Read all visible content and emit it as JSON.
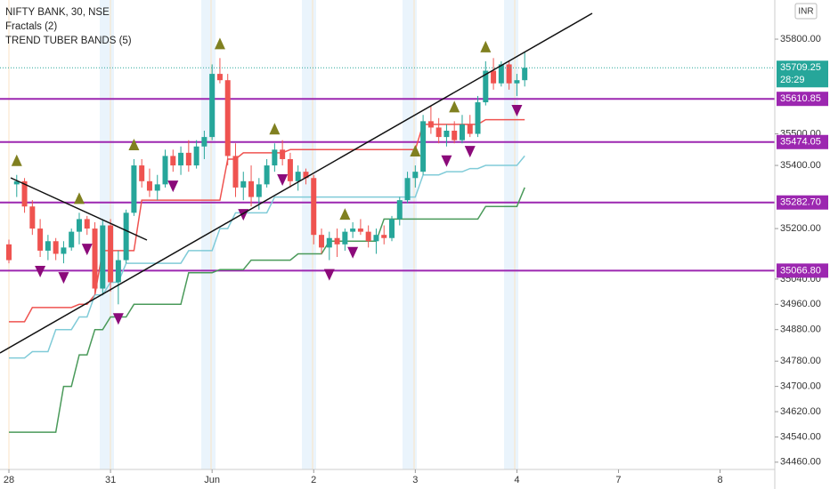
{
  "chart_data": {
    "type": "candlestick",
    "title": "NIFTY BANK, 30, NSE",
    "legend": [
      "Fractals (2)",
      "TREND TUBER BANDS (5)"
    ],
    "currency": "INR",
    "up_color": "#26a69a",
    "down_color": "#ef5350",
    "open": [
      35150,
      35340,
      35350,
      35270,
      35200,
      35130,
      35160,
      35120,
      35140,
      35190,
      35230,
      35200,
      35010,
      35210,
      35030,
      35100,
      35250,
      35400,
      35350,
      35320,
      35340,
      35430,
      35400,
      35440,
      35400,
      35460,
      35490,
      35690,
      35670,
      35430,
      35330,
      35350,
      35300,
      35340,
      35400,
      35450,
      35420,
      35350,
      35380,
      35360,
      35180,
      35140,
      35170,
      35150,
      35190,
      35200,
      35190,
      35160,
      35180,
      35170,
      35230,
      35290,
      35360,
      35380,
      35540,
      35520,
      35490,
      35510,
      35480,
      35530,
      35500,
      35600,
      35700,
      35660,
      35720,
      35660,
      35670
    ],
    "high": [
      35165,
      35370,
      35360,
      35290,
      35230,
      35180,
      35170,
      35160,
      35200,
      35250,
      35240,
      35220,
      35230,
      35230,
      35130,
      35260,
      35420,
      35420,
      35390,
      35370,
      35450,
      35450,
      35460,
      35480,
      35480,
      35510,
      35720,
      35740,
      35690,
      35470,
      35380,
      35400,
      35360,
      35420,
      35470,
      35480,
      35440,
      35400,
      35390,
      35370,
      35200,
      35190,
      35200,
      35200,
      35220,
      35230,
      35210,
      35200,
      35210,
      35240,
      35300,
      35380,
      35400,
      35560,
      35590,
      35550,
      35530,
      35540,
      35560,
      35560,
      35620,
      35730,
      35740,
      35730,
      35730,
      35690,
      35760
    ],
    "low": [
      35090,
      35300,
      35250,
      35180,
      35110,
      35100,
      35100,
      35090,
      35130,
      35150,
      35180,
      34990,
      34990,
      35000,
      34960,
      35090,
      35240,
      35330,
      35300,
      35290,
      35330,
      35380,
      35370,
      35380,
      35390,
      35420,
      35480,
      35660,
      35400,
      35300,
      35290,
      35270,
      35260,
      35330,
      35380,
      35400,
      35330,
      35320,
      35340,
      35150,
      35120,
      35100,
      35110,
      35130,
      35170,
      35180,
      35140,
      35120,
      35150,
      35160,
      35210,
      35280,
      35330,
      35370,
      35500,
      35470,
      35460,
      35470,
      35470,
      35490,
      35490,
      35590,
      35640,
      35650,
      35640,
      35620,
      35650
    ],
    "close": [
      35100,
      35350,
      35270,
      35200,
      35130,
      35160,
      35120,
      35140,
      35190,
      35230,
      35200,
      35010,
      35210,
      35030,
      35100,
      35250,
      35400,
      35350,
      35320,
      35340,
      35430,
      35400,
      35440,
      35400,
      35460,
      35490,
      35690,
      35670,
      35430,
      35330,
      35350,
      35300,
      35340,
      35400,
      35450,
      35420,
      35350,
      35380,
      35360,
      35180,
      35140,
      35170,
      35150,
      35190,
      35200,
      35190,
      35160,
      35180,
      35170,
      35230,
      35290,
      35360,
      35380,
      35540,
      35520,
      35490,
      35510,
      35480,
      35530,
      35500,
      35600,
      35700,
      35660,
      35720,
      35660,
      35670,
      35709.25
    ],
    "bands": [
      {
        "color": "#ef5350",
        "values": [
          34905,
          34905,
          34905,
          34950,
          34950,
          34950,
          34950,
          34950,
          34950,
          34960,
          34960,
          34990,
          35130,
          35130,
          35130,
          35130,
          35130,
          35290,
          35290,
          35290,
          35290,
          35290,
          35290,
          35290,
          35290,
          35290,
          35290,
          35290,
          35420,
          35420,
          35440,
          35440,
          35440,
          35440,
          35440,
          35440,
          35450,
          35450,
          35450,
          35450,
          35450,
          35450,
          35450,
          35450,
          35450,
          35450,
          35450,
          35450,
          35450,
          35450,
          35450,
          35450,
          35450,
          35530,
          35530,
          35530,
          35530,
          35530,
          35530,
          35530,
          35530,
          35545,
          35545,
          35545,
          35545,
          35545,
          35545
        ]
      },
      {
        "color": "#80cbd8",
        "values": [
          34790,
          34790,
          34790,
          34810,
          34810,
          34810,
          34880,
          34880,
          34880,
          34920,
          34920,
          34990,
          34990,
          35030,
          35030,
          35090,
          35090,
          35090,
          35090,
          35090,
          35090,
          35090,
          35090,
          35130,
          35130,
          35130,
          35130,
          35200,
          35200,
          35250,
          35250,
          35250,
          35250,
          35250,
          35300,
          35300,
          35300,
          35300,
          35300,
          35300,
          35300,
          35300,
          35300,
          35300,
          35300,
          35300,
          35300,
          35300,
          35300,
          35300,
          35300,
          35300,
          35300,
          35370,
          35370,
          35370,
          35380,
          35380,
          35380,
          35390,
          35390,
          35400,
          35400,
          35400,
          35400,
          35400,
          35430
        ]
      },
      {
        "color": "#4a9a5a",
        "values": [
          34555,
          34555,
          34555,
          34555,
          34555,
          34555,
          34555,
          34700,
          34700,
          34800,
          34800,
          34880,
          34880,
          34920,
          34920,
          34920,
          34960,
          34960,
          34960,
          34960,
          34960,
          34960,
          34960,
          35060,
          35060,
          35060,
          35060,
          35070,
          35070,
          35070,
          35070,
          35100,
          35100,
          35100,
          35100,
          35100,
          35100,
          35120,
          35120,
          35120,
          35120,
          35160,
          35160,
          35160,
          35160,
          35160,
          35160,
          35160,
          35230,
          35230,
          35230,
          35230,
          35230,
          35230,
          35230,
          35230,
          35230,
          35230,
          35230,
          35230,
          35230,
          35270,
          35270,
          35270,
          35270,
          35270,
          35330
        ]
      }
    ],
    "fractals_up": [
      null,
      35370,
      null,
      null,
      null,
      null,
      null,
      null,
      null,
      35250,
      null,
      null,
      null,
      null,
      null,
      null,
      35420,
      null,
      null,
      null,
      null,
      null,
      null,
      null,
      null,
      null,
      null,
      35740,
      null,
      null,
      null,
      null,
      null,
      null,
      35470,
      null,
      null,
      null,
      null,
      null,
      null,
      null,
      null,
      35200,
      null,
      null,
      null,
      null,
      null,
      null,
      null,
      null,
      35400,
      null,
      null,
      null,
      null,
      35540,
      null,
      null,
      null,
      35730,
      null,
      null,
      null,
      null,
      null
    ],
    "fractals_down": [
      null,
      null,
      null,
      null,
      35110,
      null,
      null,
      35090,
      null,
      null,
      35180,
      null,
      null,
      null,
      34960,
      null,
      null,
      null,
      null,
      null,
      null,
      35380,
      null,
      null,
      null,
      null,
      null,
      null,
      null,
      null,
      35290,
      null,
      null,
      null,
      null,
      35400,
      null,
      null,
      null,
      null,
      null,
      35100,
      null,
      null,
      35170,
      null,
      null,
      null,
      null,
      null,
      null,
      null,
      null,
      null,
      null,
      null,
      35460,
      null,
      null,
      35490,
      null,
      null,
      null,
      null,
      null,
      35620,
      null
    ],
    "fractal_up_color": "#808020",
    "fractal_down_color": "#8b0a7a",
    "levels": [
      {
        "value": 35610.85,
        "label": "35610.85"
      },
      {
        "value": 35474.05,
        "label": "35474.05"
      },
      {
        "value": 35282.7,
        "label": "35282.70"
      },
      {
        "value": 35066.8,
        "label": "35066.80"
      }
    ],
    "level_color": "#9c27b0",
    "last_price": {
      "value": 35709.25,
      "label": "35709.25"
    },
    "countdown": "28:29",
    "xlim": [
      -1.14,
      98
    ],
    "xticks": [
      {
        "value": 0,
        "label": "28"
      },
      {
        "value": 13,
        "label": "31"
      },
      {
        "value": 26,
        "label": "Jun"
      },
      {
        "value": 39,
        "label": "2"
      },
      {
        "value": 52,
        "label": "3"
      },
      {
        "value": 65,
        "label": "4"
      },
      {
        "value": 78,
        "label": "7"
      },
      {
        "value": 91,
        "label": "8"
      }
    ],
    "ylim": [
      34437,
      35924
    ],
    "yticks": [
      {
        "value": 35800,
        "label": "35800.00"
      },
      {
        "value": 35500,
        "label": "35500.00"
      },
      {
        "value": 35400,
        "label": "35400.00"
      },
      {
        "value": 35200,
        "label": "35200.00"
      },
      {
        "value": 35040,
        "label": "35040.00"
      },
      {
        "value": 34960,
        "label": "34960.00"
      },
      {
        "value": 34880,
        "label": "34880.00"
      },
      {
        "value": 34780,
        "label": "34780.00"
      },
      {
        "value": 34700,
        "label": "34700.00"
      },
      {
        "value": 34620,
        "label": "34620.00"
      },
      {
        "value": 34540,
        "label": "34540.00"
      },
      {
        "value": 34460,
        "label": "34460.00"
      }
    ]
  }
}
